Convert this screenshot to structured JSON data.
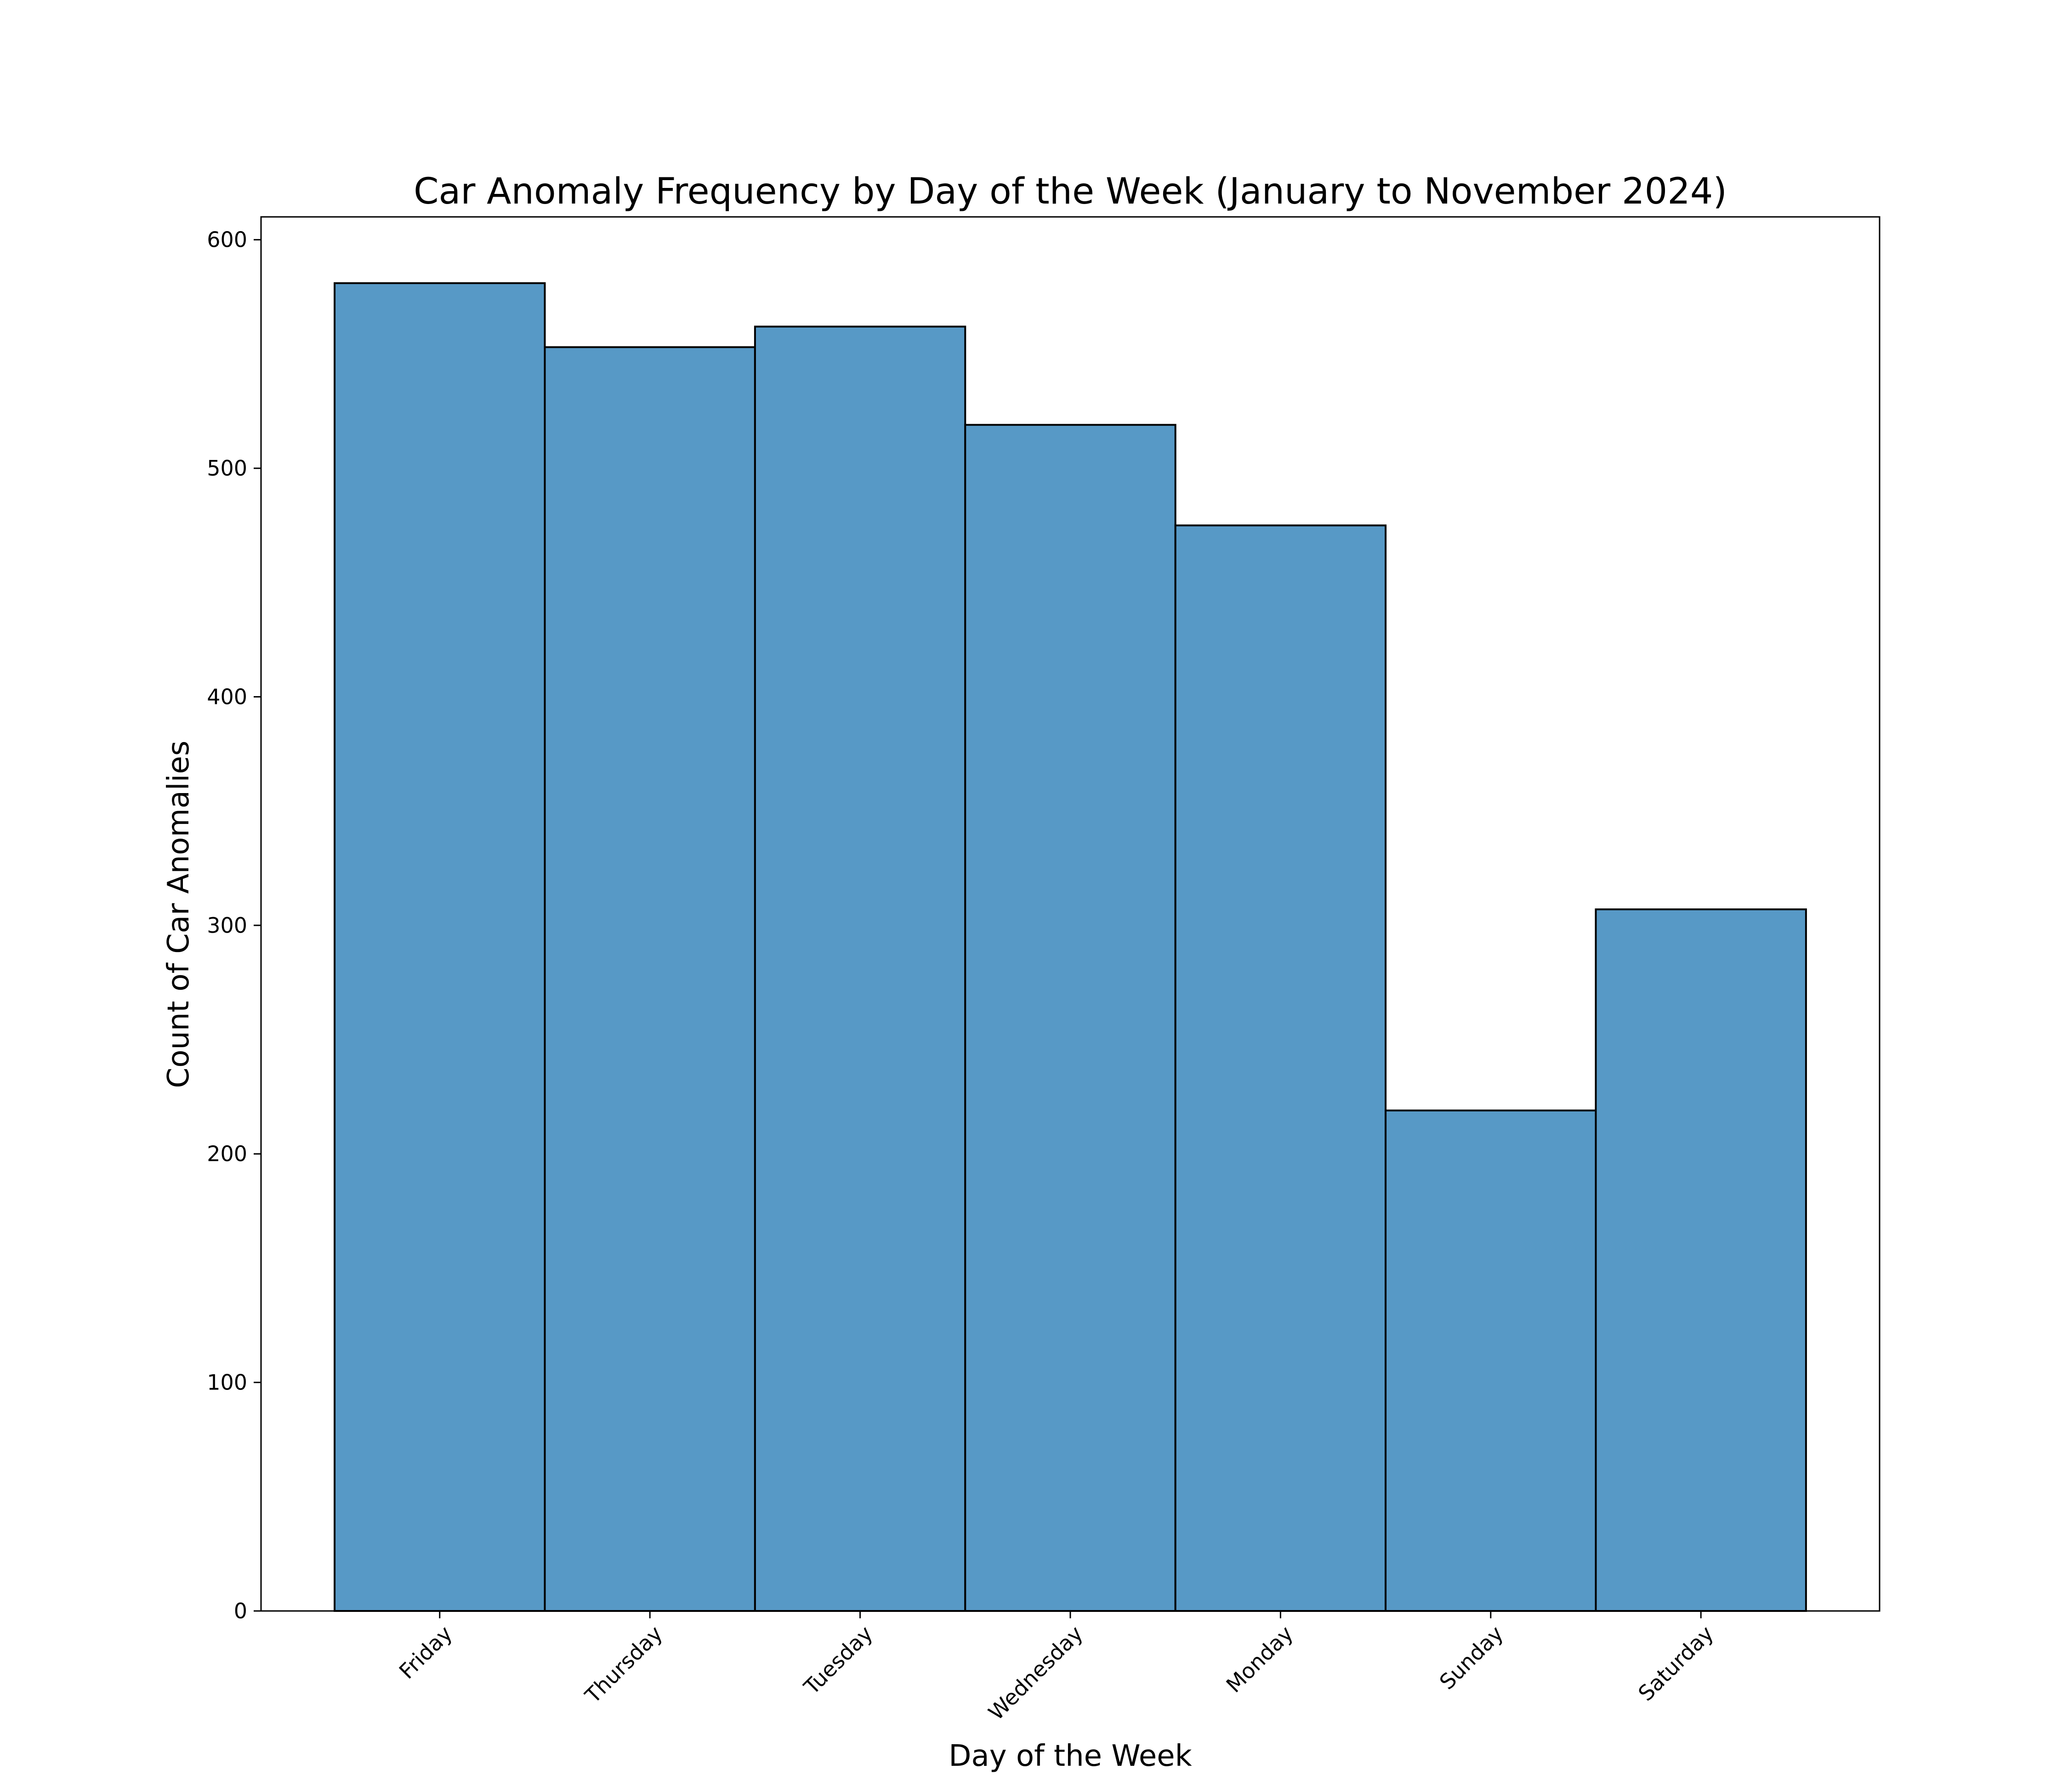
{
  "chart_data": {
    "type": "bar",
    "title": "Car Anomaly Frequency by Day of the Week (January to November 2024)",
    "xlabel": "Day of the Week",
    "ylabel": "Count of Car Anomalies",
    "categories": [
      "Friday",
      "Thursday",
      "Tuesday",
      "Wednesday",
      "Monday",
      "Sunday",
      "Saturday"
    ],
    "values": [
      581,
      553,
      562,
      519,
      475,
      219,
      307
    ],
    "ylim": [
      0,
      610
    ],
    "yticks": [
      0,
      100,
      200,
      300,
      400,
      500,
      600
    ],
    "grid": false,
    "legend": "none",
    "bar_color": "#5799c6",
    "edge_color": "#000000"
  }
}
